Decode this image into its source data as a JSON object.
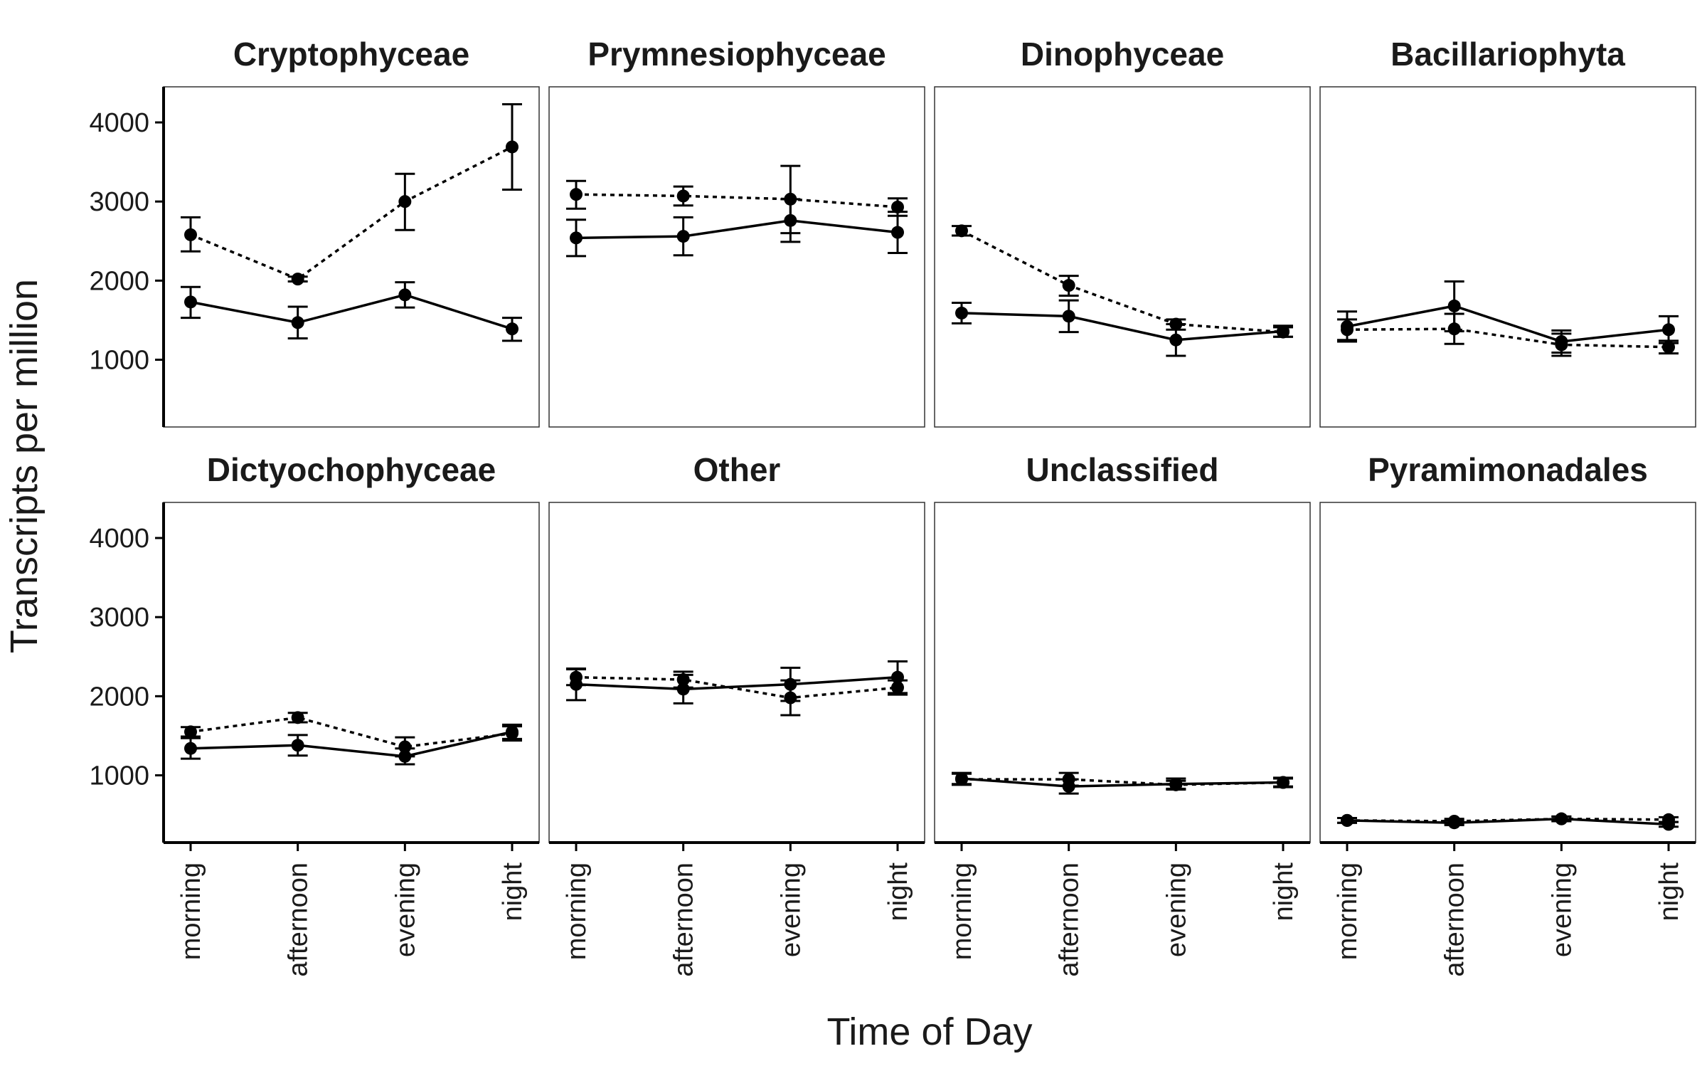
{
  "chart_data": {
    "type": "line",
    "layout": "facet-grid-2x4",
    "xlabel": "Time of Day",
    "ylabel": "Transcripts per million",
    "categories": [
      "morning",
      "afternoon",
      "evening",
      "night"
    ],
    "ylim": [
      150,
      4450
    ],
    "yticks": [
      1000,
      2000,
      3000,
      4000
    ],
    "grid": false,
    "legend": "none",
    "series_styles": {
      "solid": "solid line",
      "dotted": "dotted line"
    },
    "panels": [
      {
        "title": "Cryptophyceae",
        "series": [
          {
            "style": "dotted",
            "values": [
              2580,
              2020,
              3000,
              3690
            ],
            "err_low": [
              2370,
              1990,
              2640,
              3150
            ],
            "err_high": [
              2800,
              2050,
              3350,
              4230
            ]
          },
          {
            "style": "solid",
            "values": [
              1730,
              1470,
              1820,
              1390
            ],
            "err_low": [
              1530,
              1270,
              1660,
              1240
            ],
            "err_high": [
              1920,
              1670,
              1980,
              1530
            ]
          }
        ]
      },
      {
        "title": "Prymnesiophyceae",
        "series": [
          {
            "style": "dotted",
            "values": [
              3090,
              3070,
              3030,
              2930
            ],
            "err_low": [
              2910,
              2950,
              2600,
              2820
            ],
            "err_high": [
              3260,
              3190,
              3450,
              3040
            ]
          },
          {
            "style": "solid",
            "values": [
              2540,
              2560,
              2760,
              2610
            ],
            "err_low": [
              2310,
              2320,
              2490,
              2350
            ],
            "err_high": [
              2770,
              2800,
              3030,
              2870
            ]
          }
        ]
      },
      {
        "title": "Dinophyceae",
        "series": [
          {
            "style": "dotted",
            "values": [
              2630,
              1940,
              1450,
              1350
            ],
            "err_low": [
              2570,
              1810,
              1380,
              1290
            ],
            "err_high": [
              2690,
              2060,
              1510,
              1410
            ]
          },
          {
            "style": "solid",
            "values": [
              1590,
              1550,
              1250,
              1360
            ],
            "err_low": [
              1460,
              1350,
              1050,
              1290
            ],
            "err_high": [
              1720,
              1750,
              1450,
              1430
            ]
          }
        ]
      },
      {
        "title": "Bacillariophyta",
        "series": [
          {
            "style": "dotted",
            "values": [
              1380,
              1390,
              1190,
              1160
            ],
            "err_low": [
              1250,
              1200,
              1050,
              1080
            ],
            "err_high": [
              1510,
              1580,
              1330,
              1240
            ]
          },
          {
            "style": "solid",
            "values": [
              1420,
              1680,
              1230,
              1380
            ],
            "err_low": [
              1230,
              1360,
              1090,
              1210
            ],
            "err_high": [
              1610,
              1990,
              1370,
              1550
            ]
          }
        ]
      },
      {
        "title": "Dictyochophyceae",
        "series": [
          {
            "style": "dotted",
            "values": [
              1550,
              1730,
              1360,
              1530
            ],
            "err_low": [
              1490,
              1670,
              1240,
              1440
            ],
            "err_high": [
              1610,
              1790,
              1480,
              1620
            ]
          },
          {
            "style": "solid",
            "values": [
              1340,
              1380,
              1240,
              1550
            ],
            "err_low": [
              1210,
              1250,
              1140,
              1460
            ],
            "err_high": [
              1470,
              1510,
              1340,
              1640
            ]
          }
        ]
      },
      {
        "title": "Other",
        "series": [
          {
            "style": "dotted",
            "values": [
              2240,
              2210,
              1980,
              2110
            ],
            "err_low": [
              2140,
              2110,
              1760,
              2020
            ],
            "err_high": [
              2340,
              2310,
              2200,
              2200
            ]
          },
          {
            "style": "solid",
            "values": [
              2150,
              2090,
              2150,
              2240
            ],
            "err_low": [
              1950,
              1910,
              1940,
              2040
            ],
            "err_high": [
              2350,
              2270,
              2360,
              2440
            ]
          }
        ]
      },
      {
        "title": "Unclassified",
        "series": [
          {
            "style": "dotted",
            "values": [
              950,
              950,
              880,
              910
            ],
            "err_low": [
              880,
              870,
              830,
              860
            ],
            "err_high": [
              1020,
              1030,
              930,
              960
            ]
          },
          {
            "style": "solid",
            "values": [
              960,
              860,
              890,
              910
            ],
            "err_low": [
              890,
              770,
              820,
              850
            ],
            "err_high": [
              1030,
              950,
              960,
              970
            ]
          }
        ]
      },
      {
        "title": "Pyramimonadales",
        "series": [
          {
            "style": "dotted",
            "values": [
              430,
              420,
              450,
              440
            ],
            "err_low": [
              400,
              390,
              420,
              410
            ],
            "err_high": [
              460,
              450,
              480,
              470
            ]
          },
          {
            "style": "solid",
            "values": [
              430,
              400,
              450,
              380
            ],
            "err_low": [
              400,
              370,
              420,
              350
            ],
            "err_high": [
              460,
              430,
              480,
              410
            ]
          }
        ]
      }
    ]
  }
}
